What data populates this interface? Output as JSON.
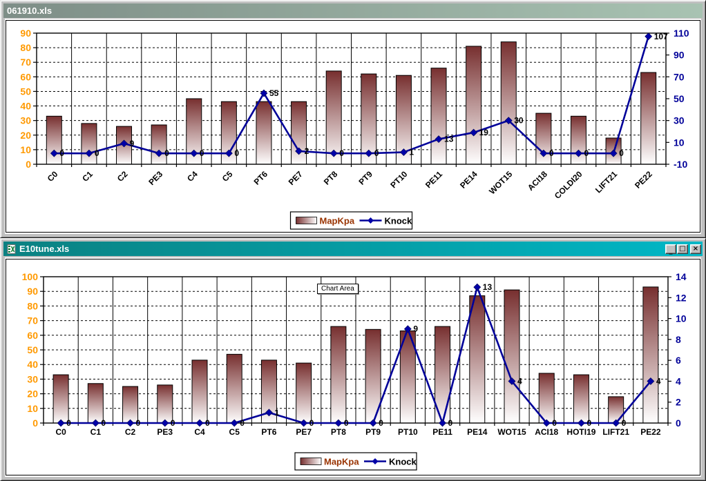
{
  "app": {
    "chrome_color": "#c0c0c0"
  },
  "windows": [
    {
      "title": "061910.xls",
      "active": false,
      "titlebar": {
        "gradient_from": "#7E8E87",
        "gradient_to": "#A8C3B2",
        "text_color": "#ffffff"
      }
    },
    {
      "title": "E10tune.xls",
      "active": true,
      "titlebar": {
        "gradient_from": "#0B8181",
        "gradient_to": "#00B7C6",
        "text_color": "#ffffff"
      },
      "window_icon": "excel-worksheet-icon",
      "controls": {
        "minimize": "_",
        "maximize": "□",
        "close": "×"
      },
      "tooltip": "Chart Area"
    }
  ],
  "chart_data": [
    {
      "type": "bar",
      "subtype": "bar+line-combo",
      "window": "061910.xls",
      "categories": [
        "C0",
        "C1",
        "C2",
        "PE3",
        "C4",
        "C5",
        "PT6",
        "PE7",
        "PT8",
        "PT9",
        "PT10",
        "PE11",
        "PE14",
        "WOT15",
        "ACI18",
        "COLDI20",
        "LIFT21",
        "PE22"
      ],
      "series": [
        {
          "name": "MapKpa",
          "type": "bar",
          "axis": "left",
          "values": [
            33,
            28,
            26,
            27,
            45,
            43,
            43,
            43,
            64,
            62,
            61,
            66,
            81,
            84,
            35,
            33,
            18,
            63
          ]
        },
        {
          "name": "Knock",
          "type": "line",
          "axis": "right",
          "point_labels_shown": true,
          "values": [
            0,
            0,
            9,
            0,
            0,
            0,
            55,
            2,
            0,
            0,
            1,
            13,
            19,
            30,
            0,
            0,
            0,
            107
          ]
        }
      ],
      "left_axis": {
        "min": 0,
        "max": 90,
        "step": 10,
        "label_color": "#FF9900"
      },
      "right_axis": {
        "min": -10,
        "max": 110,
        "step": 20,
        "label_color": "#000099"
      },
      "category_labels": {
        "rotation": -45,
        "color": "#000000"
      },
      "grid": {
        "horizontal": "dashed",
        "vertical": "solid"
      },
      "legend": {
        "position": "bottom",
        "entries": [
          "MapKpa",
          "Knock"
        ]
      },
      "colors": {
        "bar_top": "#772F2F",
        "bar_bottom": "#FFFFFF",
        "line": "#000099",
        "marker": "#0000A8",
        "map_legend_text": "#993300",
        "knock_legend_text": "#000000",
        "point_label": "#000000"
      }
    },
    {
      "type": "bar",
      "subtype": "bar+line-combo",
      "window": "E10tune.xls",
      "categories": [
        "C0",
        "C1",
        "C2",
        "PE3",
        "C4",
        "C5",
        "PT6",
        "PE7",
        "PT8",
        "PT9",
        "PT10",
        "PE11",
        "PE14",
        "WOT15",
        "ACI18",
        "HOTI19",
        "LIFT21",
        "PE22"
      ],
      "series": [
        {
          "name": "MapKpa",
          "type": "bar",
          "axis": "left",
          "values": [
            33,
            27,
            25,
            26,
            43,
            47,
            43,
            41,
            66,
            64,
            63,
            66,
            87,
            91,
            34,
            33,
            18,
            93
          ]
        },
        {
          "name": "Knock",
          "type": "line",
          "axis": "right",
          "point_labels_shown": true,
          "values": [
            0,
            0,
            0,
            0,
            0,
            0,
            1,
            0,
            0,
            0,
            9,
            0,
            13,
            4,
            0,
            0,
            0,
            4
          ]
        }
      ],
      "left_axis": {
        "min": 0,
        "max": 100,
        "step": 10,
        "label_color": "#FF9900"
      },
      "right_axis": {
        "min": 0,
        "max": 14,
        "step": 2,
        "label_color": "#000099"
      },
      "category_labels": {
        "rotation": 0,
        "color": "#000000"
      },
      "grid": {
        "horizontal": "dashed",
        "vertical": "solid"
      },
      "legend": {
        "position": "bottom",
        "entries": [
          "MapKpa",
          "Knock"
        ]
      },
      "colors": {
        "bar_top": "#772F2F",
        "bar_bottom": "#FFFFFF",
        "line": "#000099",
        "marker": "#0000A8",
        "map_legend_text": "#993300",
        "knock_legend_text": "#000000",
        "point_label": "#000000"
      }
    }
  ]
}
